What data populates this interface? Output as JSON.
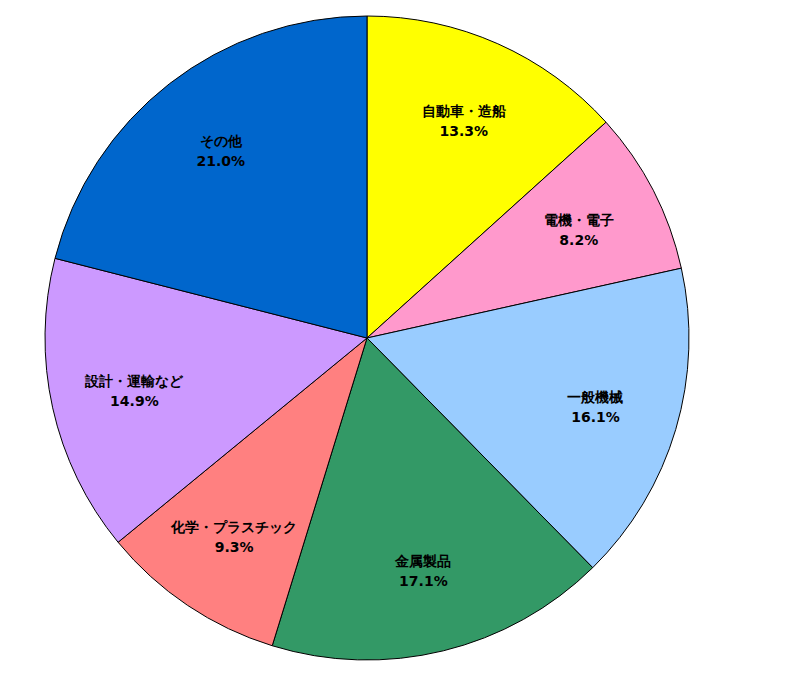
{
  "chart_data": {
    "type": "pie",
    "categories": [
      "自動車・造船",
      "電機・電子",
      "一般機械",
      "金属製品",
      "化学・プラスチック",
      "設計・運輸など",
      "その他"
    ],
    "values": [
      13.3,
      8.2,
      16.1,
      17.1,
      9.3,
      14.9,
      21.0
    ],
    "value_labels": [
      "13.3%",
      "8.2%",
      "16.1%",
      "17.1%",
      "9.3%",
      "14.9%",
      "21.0%"
    ],
    "colors": [
      "#FFFF00",
      "#FF99CC",
      "#99CCFF",
      "#339966",
      "#FF8080",
      "#CC99FF",
      "#0066CC"
    ],
    "data_labels": true
  }
}
